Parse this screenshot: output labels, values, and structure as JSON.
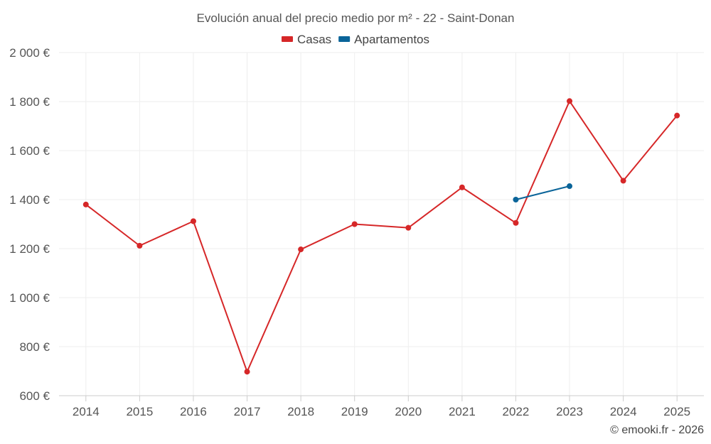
{
  "chart_data": {
    "type": "line",
    "title": "Evolución anual del precio medio por m² - 22 - Saint-Donan",
    "categories": [
      "2014",
      "2015",
      "2016",
      "2017",
      "2018",
      "2019",
      "2020",
      "2021",
      "2022",
      "2023",
      "2024",
      "2025"
    ],
    "ylim": [
      600,
      2000
    ],
    "yticks": [
      600,
      800,
      1000,
      1200,
      1400,
      1600,
      1800,
      2000
    ],
    "ytick_labels": [
      "600 €",
      "800 €",
      "1 000 €",
      "1 200 €",
      "1 400 €",
      "1 600 €",
      "1 800 €",
      "2 000 €"
    ],
    "grid": true,
    "legend_position": "top-center",
    "series": [
      {
        "name": "Casas",
        "color": "#d62728",
        "values": [
          1380,
          1212,
          1312,
          698,
          1197,
          1300,
          1285,
          1450,
          1305,
          1802,
          1477,
          1743
        ]
      },
      {
        "name": "Apartamentos",
        "color": "#0a6499",
        "values": [
          null,
          null,
          null,
          null,
          null,
          null,
          null,
          null,
          1400,
          1455,
          null,
          null
        ]
      }
    ],
    "credit": "© emooki.fr - 2026"
  }
}
